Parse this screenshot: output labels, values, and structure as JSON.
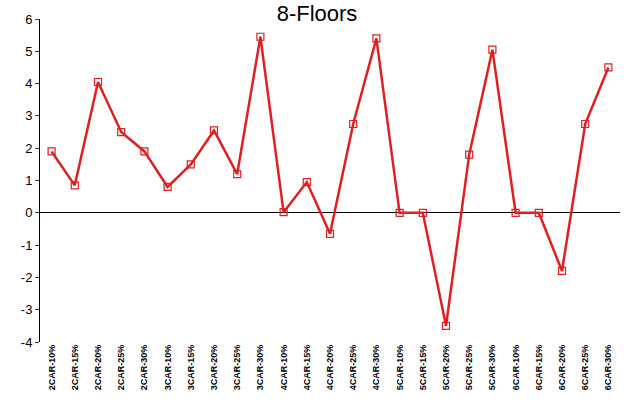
{
  "chart_data": {
    "type": "line",
    "title": "8-Floors",
    "categories": [
      "2CAR-10%",
      "2CAR-15%",
      "2CAR-20%",
      "2CAR-25%",
      "2CAR-30%",
      "3CAR-10%",
      "3CAR-15%",
      "3CAR-20%",
      "3CAR-25%",
      "3CAR-30%",
      "4CAR-10%",
      "4CAR-15%",
      "4CAR-20%",
      "4CAR-25%",
      "4CAR-30%",
      "5CAR-10%",
      "5CAR-15%",
      "5CAR-20%",
      "5CAR-25%",
      "5CAR-30%",
      "6CAR-10%",
      "6CAR-15%",
      "6CAR-20%",
      "6CAR-25%",
      "6CAR-30%"
    ],
    "values": [
      1.9,
      0.85,
      4.05,
      2.5,
      1.9,
      0.8,
      1.5,
      2.55,
      1.2,
      5.45,
      0.02,
      0.95,
      -0.65,
      2.75,
      5.4,
      0,
      0,
      -3.5,
      1.8,
      5.05,
      0,
      0,
      -1.8,
      2.75,
      4.5
    ],
    "color": "#e02020",
    "marker": "square-open",
    "line_style": "solid",
    "ylim": [
      -4,
      6
    ],
    "yticks": [
      -4,
      -3,
      -2,
      -1,
      0,
      1,
      2,
      3,
      4,
      5,
      6
    ],
    "grid": false
  }
}
